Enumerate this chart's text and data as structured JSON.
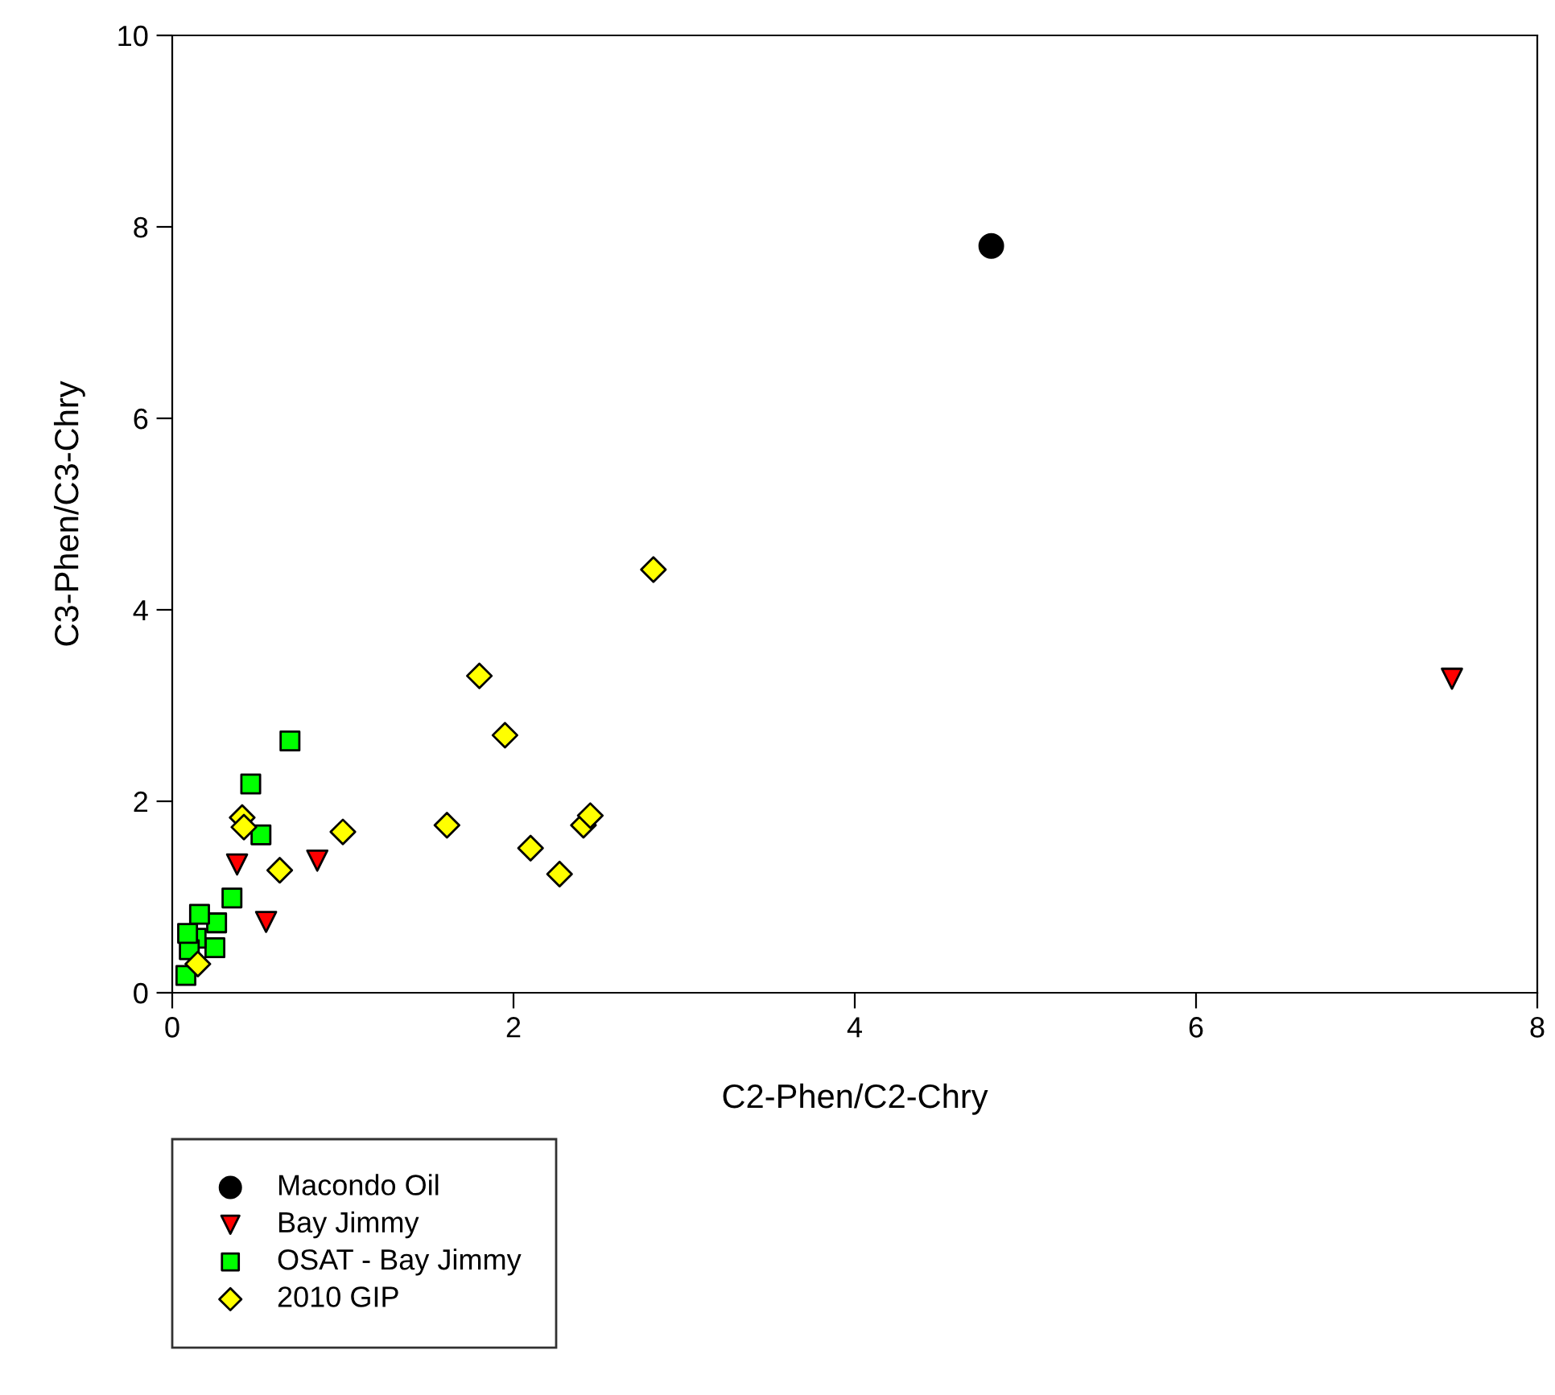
{
  "chart_data": {
    "type": "scatter",
    "xlabel": "C2-Phen/C2-Chry",
    "ylabel": "C3-Phen/C3-Chry",
    "xlim": [
      0,
      8
    ],
    "ylim": [
      0,
      10
    ],
    "xticks": [
      0,
      2,
      4,
      6,
      8
    ],
    "yticks": [
      0,
      2,
      4,
      6,
      8,
      10
    ],
    "grid": false,
    "legend": "bottom left",
    "series": [
      {
        "name": "Macondo Oil",
        "color": "#000000",
        "marker": "circle",
        "x": [
          4.8
        ],
        "values": [
          7.8
        ]
      },
      {
        "name": "Bay Jimmy",
        "color": "#ff0000",
        "marker": "triangle",
        "x": [
          7.5,
          0.38,
          0.85,
          0.55
        ],
        "values": [
          3.28,
          1.34,
          1.38,
          0.74
        ]
      },
      {
        "name": "OSAT - Bay Jimmy",
        "color": "#00ff00",
        "marker": "square",
        "x": [
          0.69,
          0.46,
          0.52,
          0.35,
          0.26,
          0.25,
          0.16,
          0.14,
          0.1,
          0.08,
          0.09
        ],
        "values": [
          2.63,
          2.18,
          1.65,
          0.99,
          0.73,
          0.47,
          0.82,
          0.57,
          0.45,
          0.18,
          0.62
        ]
      },
      {
        "name": "2010 GIP",
        "color": "#ffff00",
        "marker": "diamond",
        "x": [
          2.82,
          1.8,
          1.95,
          1.61,
          2.1,
          2.27,
          2.41,
          2.45,
          1.0,
          0.63,
          0.41,
          0.42,
          0.15
        ],
        "values": [
          4.42,
          3.31,
          2.69,
          1.75,
          1.51,
          1.24,
          1.75,
          1.85,
          1.68,
          1.28,
          1.83,
          1.73,
          0.3
        ]
      }
    ]
  }
}
